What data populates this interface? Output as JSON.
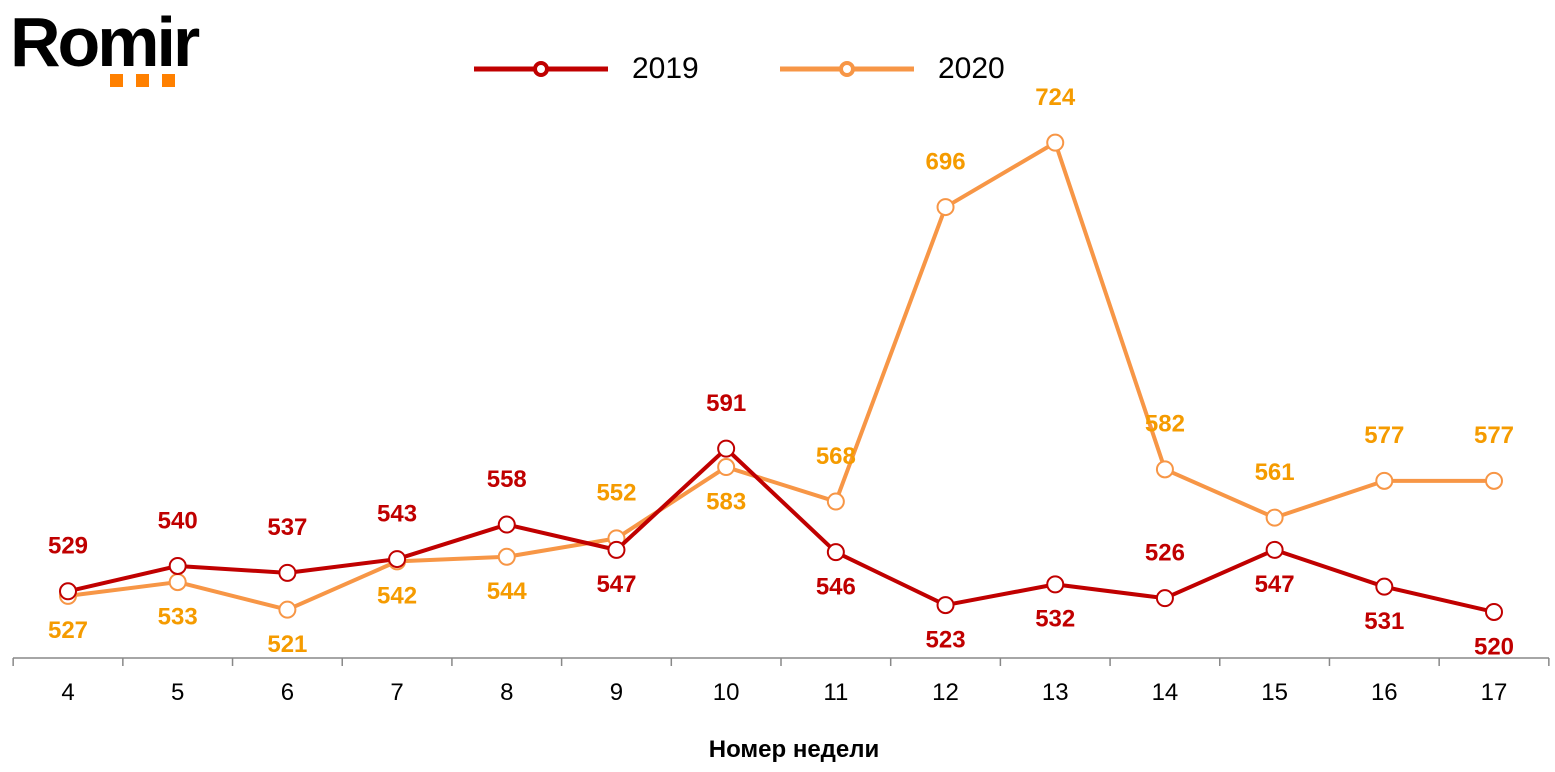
{
  "logo": {
    "text": "Romir"
  },
  "chart_data": {
    "type": "line",
    "title": "",
    "xlabel": "Номер недели",
    "ylabel": "",
    "categories": [
      "4",
      "5",
      "6",
      "7",
      "8",
      "9",
      "10",
      "11",
      "12",
      "13",
      "14",
      "15",
      "16",
      "17"
    ],
    "ylim": [
      500,
      786
    ],
    "grid": false,
    "legend_position": "top",
    "series": [
      {
        "name": "2019",
        "color": "#C00000",
        "label_color": "#C00000",
        "values": [
          529,
          540,
          537,
          543,
          558,
          547,
          591,
          546,
          523,
          532,
          526,
          547,
          531,
          520
        ]
      },
      {
        "name": "2020",
        "color": "#F79646",
        "label_color": "#F59B00",
        "values": [
          527,
          533,
          521,
          542,
          544,
          552,
          583,
          568,
          696,
          724,
          582,
          561,
          577,
          577
        ]
      }
    ]
  }
}
